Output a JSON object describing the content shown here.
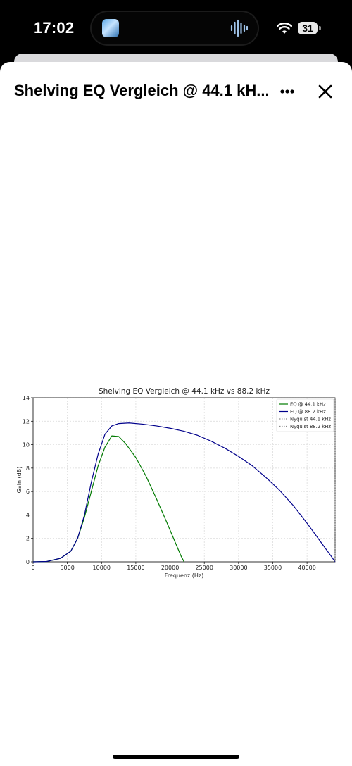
{
  "status_bar": {
    "time": "17:02",
    "battery": "31",
    "icons": [
      "app-thumbnail-icon",
      "audio-waveform-icon",
      "wifi-icon",
      "battery-icon"
    ]
  },
  "sheet": {
    "title": "Shelving EQ Vergleich @ 44.1 kH...",
    "more_icon": "ellipsis-icon",
    "close_icon": "close-icon"
  },
  "chart_data": {
    "type": "line",
    "title": "Shelving EQ Vergleich @ 44.1 kHz vs 88.2 kHz",
    "xlabel": "Frequenz (Hz)",
    "ylabel": "Gain (dB)",
    "xlim": [
      0,
      44100
    ],
    "ylim": [
      0,
      14
    ],
    "x_ticks": [
      0,
      5000,
      10000,
      15000,
      20000,
      25000,
      30000,
      35000,
      40000
    ],
    "y_ticks": [
      0,
      2,
      4,
      6,
      8,
      10,
      12,
      14
    ],
    "grid": true,
    "legend_position": "top-right",
    "series": [
      {
        "name": "EQ @ 44.1 kHz",
        "color": "#007a00",
        "style": "solid",
        "points": [
          [
            0,
            0
          ],
          [
            2000,
            0.03
          ],
          [
            4000,
            0.3
          ],
          [
            5500,
            0.9
          ],
          [
            6500,
            2.0
          ],
          [
            7500,
            3.8
          ],
          [
            8500,
            6.0
          ],
          [
            9500,
            8.2
          ],
          [
            10500,
            9.8
          ],
          [
            11500,
            10.75
          ],
          [
            12500,
            10.7
          ],
          [
            13500,
            10.1
          ],
          [
            15000,
            8.9
          ],
          [
            16500,
            7.3
          ],
          [
            18000,
            5.4
          ],
          [
            19500,
            3.4
          ],
          [
            20800,
            1.6
          ],
          [
            21600,
            0.5
          ],
          [
            22050,
            0
          ]
        ]
      },
      {
        "name": "EQ @ 88.2 kHz",
        "color": "#00008b",
        "style": "solid",
        "points": [
          [
            0,
            0
          ],
          [
            2000,
            0.03
          ],
          [
            4000,
            0.3
          ],
          [
            5500,
            0.9
          ],
          [
            6500,
            2.0
          ],
          [
            7500,
            4.0
          ],
          [
            8500,
            6.8
          ],
          [
            9500,
            9.2
          ],
          [
            10500,
            10.9
          ],
          [
            11500,
            11.6
          ],
          [
            12500,
            11.8
          ],
          [
            14000,
            11.85
          ],
          [
            16000,
            11.75
          ],
          [
            18000,
            11.6
          ],
          [
            20000,
            11.4
          ],
          [
            22000,
            11.15
          ],
          [
            24000,
            10.8
          ],
          [
            26000,
            10.3
          ],
          [
            28000,
            9.7
          ],
          [
            30000,
            9.0
          ],
          [
            32000,
            8.2
          ],
          [
            34000,
            7.2
          ],
          [
            36000,
            6.1
          ],
          [
            38000,
            4.8
          ],
          [
            40000,
            3.3
          ],
          [
            42000,
            1.7
          ],
          [
            43500,
            0.5
          ],
          [
            44100,
            0
          ]
        ]
      },
      {
        "name": "Nyquist 44.1 kHz",
        "color": "#888888",
        "style": "dotted",
        "vline": 22050
      },
      {
        "name": "Nyquist 88.2 kHz",
        "color": "#888888",
        "style": "dotted",
        "vline": 44100
      }
    ]
  }
}
